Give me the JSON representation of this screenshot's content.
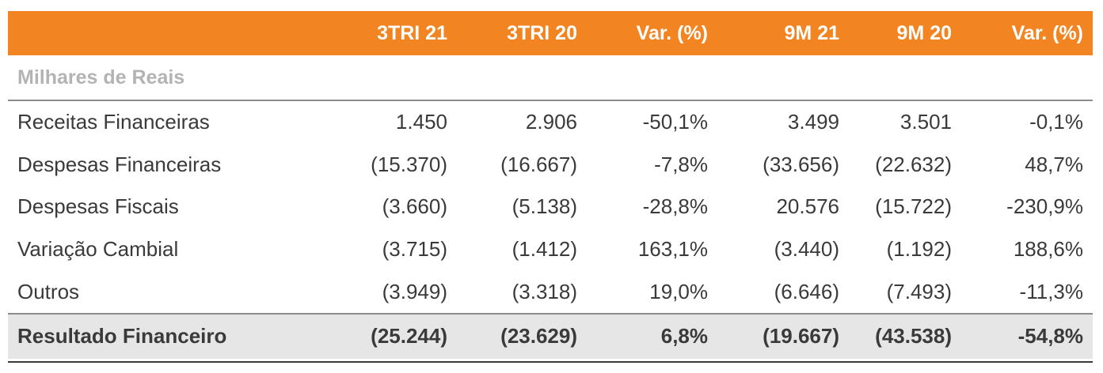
{
  "columns": [
    "3TRI 21",
    "3TRI 20",
    "Var. (%)",
    "9M 21",
    "9M 20",
    "Var. (%)"
  ],
  "unit_label": "Milhares de Reais",
  "rows": [
    {
      "label": "Receitas Financeiras",
      "values": [
        "1.450",
        "2.906",
        "-50,1%",
        "3.499",
        "3.501",
        "-0,1%"
      ]
    },
    {
      "label": "Despesas Financeiras",
      "values": [
        "(15.370)",
        "(16.667)",
        "-7,8%",
        "(33.656)",
        "(22.632)",
        "48,7%"
      ]
    },
    {
      "label": "Despesas Fiscais",
      "values": [
        "(3.660)",
        "(5.138)",
        "-28,8%",
        "20.576",
        "(15.722)",
        "-230,9%"
      ]
    },
    {
      "label": "Variação Cambial",
      "values": [
        "(3.715)",
        "(1.412)",
        "163,1%",
        "(3.440)",
        "(1.192)",
        "188,6%"
      ]
    },
    {
      "label": "Outros",
      "values": [
        "(3.949)",
        "(3.318)",
        "19,0%",
        "(6.646)",
        "(7.493)",
        "-11,3%"
      ]
    }
  ],
  "total": {
    "label": "Resultado Financeiro",
    "values": [
      "(25.244)",
      "(23.629)",
      "6,8%",
      "(19.667)",
      "(43.538)",
      "-54,8%"
    ]
  },
  "colors": {
    "header_bg": "#f28521",
    "total_bg": "#e6e6e6"
  }
}
